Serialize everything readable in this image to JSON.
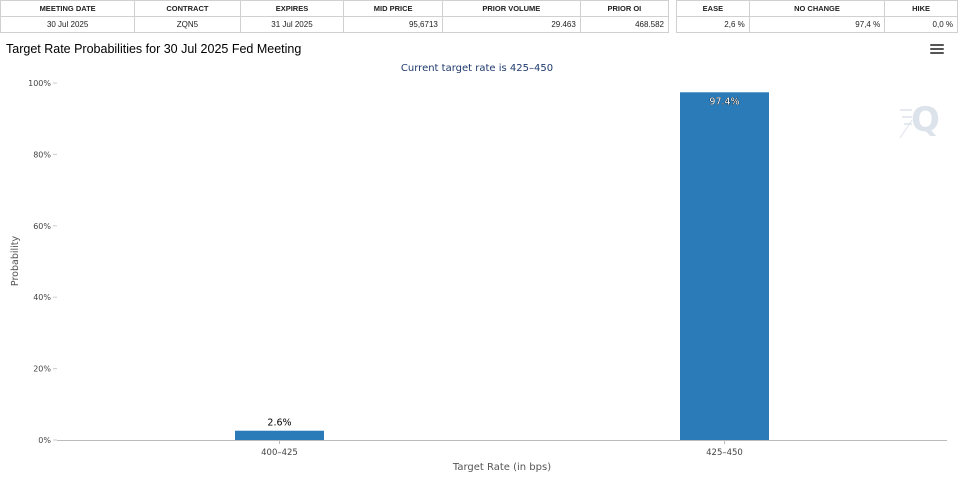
{
  "info_table": {
    "headers": [
      "MEETING DATE",
      "CONTRACT",
      "EXPIRES",
      "MID PRICE",
      "PRIOR VOLUME",
      "PRIOR OI"
    ],
    "row": [
      "30 Jul 2025",
      "ZQN5",
      "31 Jul 2025",
      "95,6713",
      "29.463",
      "468.582"
    ]
  },
  "prob_table": {
    "headers": [
      "EASE",
      "NO CHANGE",
      "HIKE"
    ],
    "row": [
      "2,6 %",
      "97,4 %",
      "0,0 %"
    ]
  },
  "chart_title": "Target Rate Probabilities for 30 Jul 2025 Fed Meeting",
  "menu_icon": "hamburger-menu-icon",
  "watermark_icon": "q-logo-watermark-icon",
  "chart_data": {
    "type": "bar",
    "title": "Target Rate Probabilities for 30 Jul 2025 Fed Meeting",
    "subtitle": "Current target rate is 425–450",
    "xlabel": "Target Rate (in bps)",
    "ylabel": "Probability",
    "categories": [
      "400–425",
      "425–450"
    ],
    "values": [
      2.6,
      97.4
    ],
    "data_labels": [
      "2.6%",
      "97.4%"
    ],
    "ylim": [
      0,
      100
    ],
    "y_ticks": [
      0,
      20,
      40,
      60,
      80,
      100
    ],
    "y_tick_labels": [
      "0%",
      "20%",
      "40%",
      "60%",
      "80%",
      "100%"
    ],
    "bar_color": "#2b7bb9",
    "grid": false
  }
}
